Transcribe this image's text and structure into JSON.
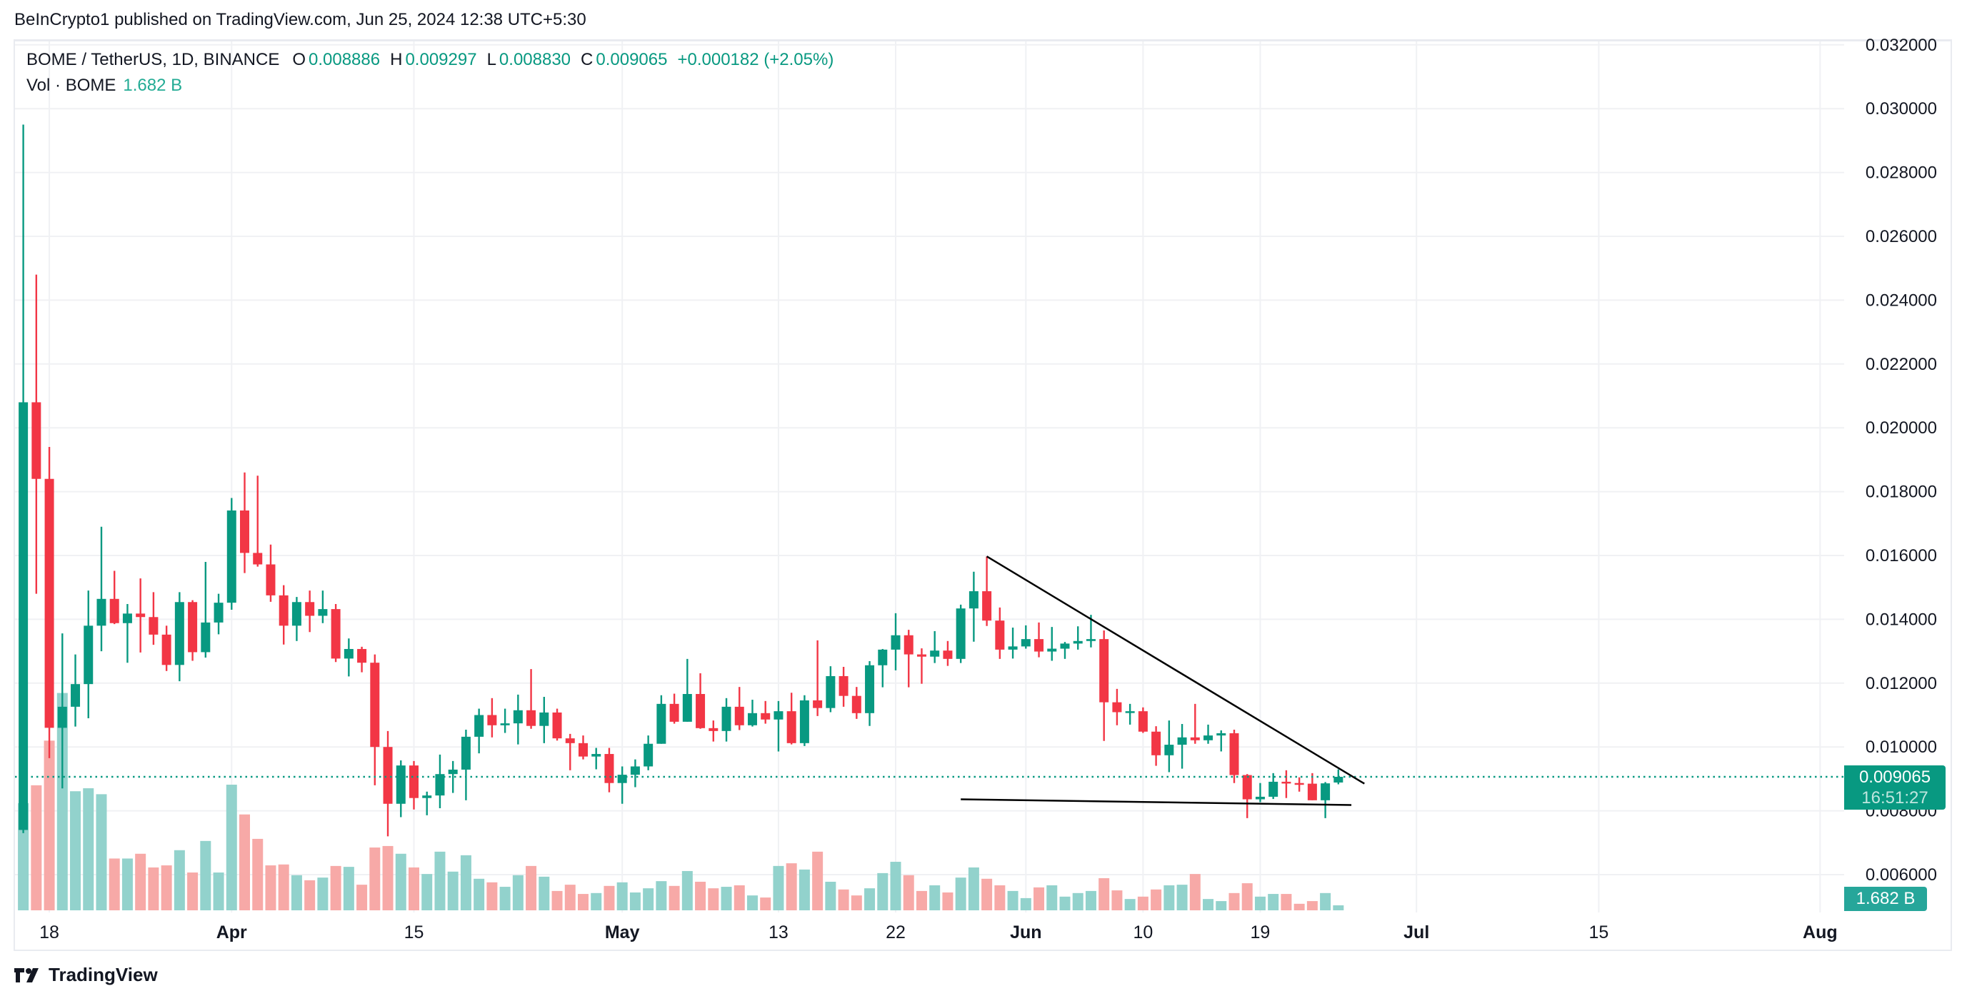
{
  "header": {
    "published": "BeInCrypto1 published on TradingView.com, Jun 25, 2024 12:38 UTC+5:30"
  },
  "legend": {
    "symbol": "BOME / TetherUS, 1D, BINANCE",
    "o_label": "O",
    "o": "0.008886",
    "h_label": "H",
    "h": "0.009297",
    "l_label": "L",
    "l": "0.008830",
    "c_label": "C",
    "c": "0.009065",
    "change": "+0.000182 (+2.05%)",
    "vol_label": "Vol · BOME",
    "vol": "1.682 B"
  },
  "price_box": {
    "price": "0.009065",
    "countdown": "16:51:27"
  },
  "volume_box": {
    "value": "1.682 B"
  },
  "logo": {
    "text": "TradingView"
  },
  "colors": {
    "up": "#089981",
    "down": "#f23645",
    "vol_up": "#92d2cc",
    "vol_down": "#f7a9a7",
    "grid": "#f0f1f4",
    "trendline": "#000000"
  },
  "chart_data": {
    "type": "candlestick",
    "symbol": "BOME / TetherUS",
    "interval": "1D",
    "exchange": "BINANCE",
    "y_ticks": [
      "0.032000",
      "0.030000",
      "0.028000",
      "0.026000",
      "0.024000",
      "0.022000",
      "0.020000",
      "0.018000",
      "0.016000",
      "0.014000",
      "0.012000",
      "0.010000",
      "0.008000",
      "0.006000"
    ],
    "ylim": [
      0.0055,
      0.0325
    ],
    "x_ticks": [
      {
        "label": "18",
        "date": "2024-03-18",
        "bold": false
      },
      {
        "label": "Apr",
        "date": "2024-04-01",
        "bold": true
      },
      {
        "label": "15",
        "date": "2024-04-15",
        "bold": false
      },
      {
        "label": "May",
        "date": "2024-05-01",
        "bold": true
      },
      {
        "label": "13",
        "date": "2024-05-13",
        "bold": false
      },
      {
        "label": "22",
        "date": "2024-05-22",
        "bold": false
      },
      {
        "label": "Jun",
        "date": "2024-06-01",
        "bold": true
      },
      {
        "label": "10",
        "date": "2024-06-10",
        "bold": false
      },
      {
        "label": "19",
        "date": "2024-06-19",
        "bold": false
      },
      {
        "label": "Jul",
        "date": "2024-07-01",
        "bold": true
      },
      {
        "label": "15",
        "date": "2024-07-15",
        "bold": false
      },
      {
        "label": "Aug",
        "date": "2024-08-01",
        "bold": true
      }
    ],
    "grid": true,
    "volume_unit": "B",
    "columns": [
      "date",
      "open",
      "high",
      "low",
      "close",
      "volume"
    ],
    "candles": [
      [
        "2024-03-16",
        0.0074,
        0.0295,
        0.0073,
        0.0208,
        36
      ],
      [
        "2024-03-17",
        0.0208,
        0.0248,
        0.0148,
        0.0184,
        42
      ],
      [
        "2024-03-18",
        0.0184,
        0.0194,
        0.00965,
        0.0106,
        57
      ],
      [
        "2024-03-19",
        0.0106,
        0.01356,
        0.0087,
        0.01126,
        73
      ],
      [
        "2024-03-20",
        0.01126,
        0.0129,
        0.01064,
        0.01197,
        40
      ],
      [
        "2024-03-21",
        0.01197,
        0.0149,
        0.0109,
        0.0138,
        41
      ],
      [
        "2024-03-22",
        0.0138,
        0.0169,
        0.013,
        0.01464,
        39
      ],
      [
        "2024-03-23",
        0.01464,
        0.01552,
        0.01385,
        0.01388,
        17.4
      ],
      [
        "2024-03-24",
        0.01388,
        0.01448,
        0.01264,
        0.01418,
        17.4
      ],
      [
        "2024-03-25",
        0.01418,
        0.01528,
        0.01296,
        0.01407,
        19
      ],
      [
        "2024-03-26",
        0.01407,
        0.01485,
        0.0132,
        0.01352,
        14.4
      ],
      [
        "2024-03-27",
        0.01352,
        0.0138,
        0.01238,
        0.01257,
        15.1
      ],
      [
        "2024-03-28",
        0.01257,
        0.01485,
        0.01206,
        0.01454,
        20.2
      ],
      [
        "2024-03-29",
        0.01454,
        0.0146,
        0.0127,
        0.01297,
        12.7
      ],
      [
        "2024-03-30",
        0.01297,
        0.0158,
        0.0128,
        0.0139,
        23.3
      ],
      [
        "2024-03-31",
        0.0139,
        0.0148,
        0.01353,
        0.01452,
        12.7
      ],
      [
        "2024-04-01",
        0.01452,
        0.0178,
        0.0143,
        0.01741,
        42.2
      ],
      [
        "2024-04-02",
        0.01741,
        0.0186,
        0.01545,
        0.01608,
        32.2
      ],
      [
        "2024-04-03",
        0.01608,
        0.0185,
        0.01565,
        0.01572,
        24
      ],
      [
        "2024-04-04",
        0.01572,
        0.01634,
        0.01455,
        0.01475,
        15.1
      ],
      [
        "2024-04-05",
        0.01475,
        0.01507,
        0.01321,
        0.0138,
        15.4
      ],
      [
        "2024-04-06",
        0.0138,
        0.0147,
        0.01332,
        0.01454,
        11.8
      ],
      [
        "2024-04-07",
        0.01454,
        0.0149,
        0.0136,
        0.01411,
        10.1
      ],
      [
        "2024-04-08",
        0.01411,
        0.0149,
        0.01388,
        0.01432,
        11
      ],
      [
        "2024-04-09",
        0.01432,
        0.01448,
        0.01266,
        0.01277,
        14.9
      ],
      [
        "2024-04-10",
        0.01277,
        0.0134,
        0.01221,
        0.01307,
        14.6
      ],
      [
        "2024-04-11",
        0.01307,
        0.01314,
        0.01234,
        0.01264,
        8.6
      ],
      [
        "2024-04-12",
        0.01264,
        0.0129,
        0.0088,
        0.01,
        21.1
      ],
      [
        "2024-04-13",
        0.01,
        0.0105,
        0.0072,
        0.00822,
        21.6
      ],
      [
        "2024-04-14",
        0.00822,
        0.00958,
        0.0078,
        0.00942,
        19
      ],
      [
        "2024-04-15",
        0.00942,
        0.00956,
        0.00804,
        0.0084,
        14.4
      ],
      [
        "2024-04-16",
        0.0084,
        0.0086,
        0.00786,
        0.00848,
        12.2
      ],
      [
        "2024-04-17",
        0.00848,
        0.00976,
        0.00808,
        0.00915,
        19.7
      ],
      [
        "2024-04-18",
        0.00915,
        0.00956,
        0.00856,
        0.00929,
        13
      ],
      [
        "2024-04-19",
        0.00929,
        0.01054,
        0.00833,
        0.01032,
        18.5
      ],
      [
        "2024-04-20",
        0.01032,
        0.0112,
        0.0098,
        0.011,
        10.6
      ],
      [
        "2024-04-21",
        0.011,
        0.01153,
        0.0103,
        0.01068,
        9.4
      ],
      [
        "2024-04-22",
        0.01068,
        0.0112,
        0.01044,
        0.01074,
        7.9
      ],
      [
        "2024-04-23",
        0.01074,
        0.01164,
        0.01008,
        0.01115,
        11.8
      ],
      [
        "2024-04-24",
        0.01115,
        0.01244,
        0.01057,
        0.01066,
        14.9
      ],
      [
        "2024-04-25",
        0.01066,
        0.01157,
        0.01012,
        0.01108,
        11.3
      ],
      [
        "2024-04-26",
        0.01108,
        0.0112,
        0.0102,
        0.01027,
        6.5
      ],
      [
        "2024-04-27",
        0.01027,
        0.01041,
        0.00927,
        0.01012,
        8.6
      ],
      [
        "2024-04-28",
        0.01012,
        0.01036,
        0.00961,
        0.0097,
        5.5
      ],
      [
        "2024-04-29",
        0.0097,
        0.00997,
        0.0093,
        0.00978,
        5.8
      ],
      [
        "2024-04-30",
        0.00978,
        0.00997,
        0.00858,
        0.00887,
        8.2
      ],
      [
        "2024-05-01",
        0.00887,
        0.00939,
        0.00822,
        0.00913,
        9.4
      ],
      [
        "2024-05-02",
        0.00913,
        0.00961,
        0.00874,
        0.00939,
        6
      ],
      [
        "2024-05-03",
        0.00939,
        0.01036,
        0.00927,
        0.0101,
        7.4
      ],
      [
        "2024-05-04",
        0.0101,
        0.01162,
        0.0101,
        0.01135,
        9.8
      ],
      [
        "2024-05-05",
        0.01135,
        0.01167,
        0.01073,
        0.01079,
        8.2
      ],
      [
        "2024-05-06",
        0.01079,
        0.01276,
        0.01079,
        0.01166,
        13.2
      ],
      [
        "2024-05-07",
        0.01166,
        0.01231,
        0.01057,
        0.01059,
        9.6
      ],
      [
        "2024-05-08",
        0.01059,
        0.01083,
        0.01017,
        0.0105,
        7.4
      ],
      [
        "2024-05-09",
        0.0105,
        0.01153,
        0.01017,
        0.01126,
        7.9
      ],
      [
        "2024-05-10",
        0.01126,
        0.01188,
        0.01053,
        0.01068,
        8.4
      ],
      [
        "2024-05-11",
        0.01068,
        0.01148,
        0.01064,
        0.01106,
        5
      ],
      [
        "2024-05-12",
        0.01106,
        0.01144,
        0.01073,
        0.01086,
        4.3
      ],
      [
        "2024-05-13",
        0.01086,
        0.01144,
        0.00986,
        0.01112,
        14.9
      ],
      [
        "2024-05-14",
        0.01112,
        0.0117,
        0.01008,
        0.01012,
        15.8
      ],
      [
        "2024-05-15",
        0.01012,
        0.01162,
        0.01003,
        0.01146,
        13.7
      ],
      [
        "2024-05-16",
        0.01146,
        0.01334,
        0.01097,
        0.01122,
        19.7
      ],
      [
        "2024-05-17",
        0.01122,
        0.01253,
        0.01109,
        0.01222,
        9.6
      ],
      [
        "2024-05-18",
        0.01222,
        0.01251,
        0.01126,
        0.0116,
        7
      ],
      [
        "2024-05-19",
        0.0116,
        0.01188,
        0.01088,
        0.01106,
        5
      ],
      [
        "2024-05-20",
        0.01106,
        0.01269,
        0.01066,
        0.01256,
        7.4
      ],
      [
        "2024-05-21",
        0.01256,
        0.01307,
        0.01187,
        0.01305,
        12.5
      ],
      [
        "2024-05-22",
        0.01305,
        0.01419,
        0.0124,
        0.0135,
        16.3
      ],
      [
        "2024-05-23",
        0.0135,
        0.01367,
        0.01187,
        0.0129,
        11.8
      ],
      [
        "2024-05-24",
        0.0129,
        0.01309,
        0.01198,
        0.01283,
        6.5
      ],
      [
        "2024-05-25",
        0.01283,
        0.01363,
        0.01263,
        0.01302,
        8.4
      ],
      [
        "2024-05-26",
        0.01302,
        0.01332,
        0.01254,
        0.01276,
        6
      ],
      [
        "2024-05-27",
        0.01276,
        0.01446,
        0.01263,
        0.01434,
        11
      ],
      [
        "2024-05-28",
        0.01434,
        0.01549,
        0.0133,
        0.01488,
        14.4
      ],
      [
        "2024-05-29",
        0.01488,
        0.01597,
        0.01379,
        0.01396,
        10.6
      ],
      [
        "2024-05-30",
        0.01396,
        0.01437,
        0.01276,
        0.01305,
        8.4
      ],
      [
        "2024-05-31",
        0.01305,
        0.01374,
        0.01277,
        0.01315,
        6.5
      ],
      [
        "2024-06-01",
        0.01315,
        0.01381,
        0.01308,
        0.01338,
        4.1
      ],
      [
        "2024-06-02",
        0.01338,
        0.0139,
        0.01281,
        0.01299,
        7.7
      ],
      [
        "2024-06-03",
        0.01299,
        0.01376,
        0.0127,
        0.01308,
        8.4
      ],
      [
        "2024-06-04",
        0.01308,
        0.01329,
        0.01276,
        0.01324,
        4.6
      ],
      [
        "2024-06-05",
        0.01324,
        0.01378,
        0.01305,
        0.01332,
        5.8
      ],
      [
        "2024-06-06",
        0.01332,
        0.01414,
        0.01312,
        0.01338,
        6.5
      ],
      [
        "2024-06-07",
        0.01338,
        0.01365,
        0.01019,
        0.0114,
        10.8
      ],
      [
        "2024-06-08",
        0.0114,
        0.01182,
        0.01068,
        0.01109,
        6.7
      ],
      [
        "2024-06-09",
        0.01109,
        0.01135,
        0.0107,
        0.01112,
        3.8
      ],
      [
        "2024-06-10",
        0.01112,
        0.01124,
        0.01044,
        0.01048,
        4.6
      ],
      [
        "2024-06-11",
        0.01048,
        0.01065,
        0.00941,
        0.00974,
        7
      ],
      [
        "2024-06-12",
        0.00974,
        0.01083,
        0.00921,
        0.01007,
        8.4
      ],
      [
        "2024-06-13",
        0.01007,
        0.01072,
        0.00932,
        0.0103,
        8.6
      ],
      [
        "2024-06-14",
        0.0103,
        0.01135,
        0.0101,
        0.01021,
        12.2
      ],
      [
        "2024-06-15",
        0.01021,
        0.0107,
        0.0101,
        0.01036,
        3.8
      ],
      [
        "2024-06-16",
        0.01036,
        0.01052,
        0.00986,
        0.01043,
        3.1
      ],
      [
        "2024-06-17",
        0.01043,
        0.01054,
        0.00887,
        0.00912,
        5.8
      ],
      [
        "2024-06-18",
        0.00912,
        0.00915,
        0.00777,
        0.00836,
        9.1
      ],
      [
        "2024-06-19",
        0.00836,
        0.00887,
        0.00827,
        0.00844,
        4.6
      ],
      [
        "2024-06-20",
        0.00844,
        0.00918,
        0.00837,
        0.00891,
        5.5
      ],
      [
        "2024-06-21",
        0.00891,
        0.00927,
        0.0084,
        0.00887,
        5.5
      ],
      [
        "2024-06-22",
        0.00887,
        0.00905,
        0.0086,
        0.00885,
        2.2
      ],
      [
        "2024-06-23",
        0.00885,
        0.00918,
        0.00833,
        0.00833,
        3.1
      ],
      [
        "2024-06-24",
        0.00833,
        0.0089,
        0.00777,
        0.00886,
        5.8
      ],
      [
        "2024-06-25",
        0.008886,
        0.009297,
        0.00883,
        0.009065,
        1.682
      ]
    ],
    "last_price": 0.009065,
    "trendlines": [
      {
        "from": {
          "date": "2024-05-29",
          "price": 0.01597
        },
        "to": {
          "date": "2024-06-27",
          "price": 0.00885
        }
      },
      {
        "from": {
          "date": "2024-05-27",
          "price": 0.00836
        },
        "to": {
          "date": "2024-06-26",
          "price": 0.00818
        }
      }
    ]
  }
}
